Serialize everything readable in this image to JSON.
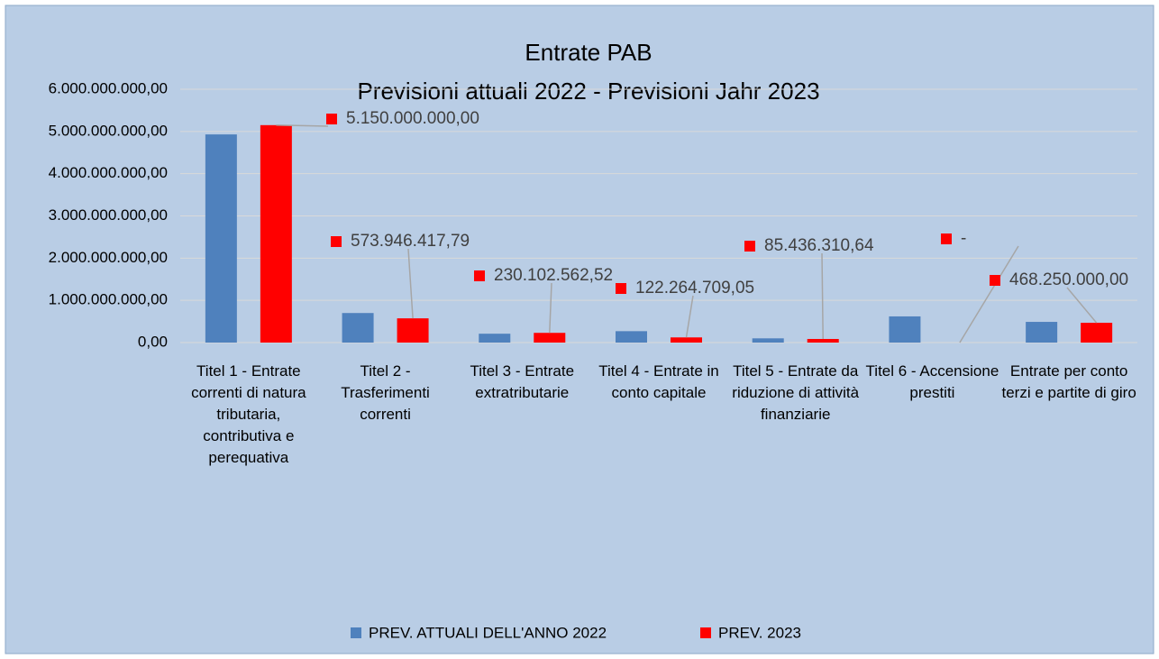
{
  "chart_data": {
    "type": "bar",
    "title": "Entrate PAB",
    "subtitle": "Previsioni attuali 2022 - Previsioni Jahr 2023",
    "categories": [
      "Titel 1 - Entrate correnti di natura tributaria, contributiva e perequativa",
      "Titel 2 - Trasferimenti correnti",
      "Titel 3 - Entrate extratributarie",
      "Titel 4 - Entrate in conto capitale",
      "Titel 5 - Entrate da riduzione di attività finanziarie",
      "Titel 6 - Accensione prestiti",
      "Entrate per conto terzi e partite di giro"
    ],
    "series": [
      {
        "name": "PREV. ATTUALI DELL'ANNO 2022",
        "color": "#4f81bd",
        "values": [
          4930000000,
          700000000,
          210000000,
          270000000,
          100000000,
          620000000,
          490000000
        ]
      },
      {
        "name": "PREV. 2023",
        "color": "#ff0000",
        "values": [
          5150000000,
          573946417.79,
          230102562.52,
          122264709.05,
          85436310.64,
          0,
          468250000
        ],
        "value_labels": [
          "5.150.000.000,00",
          "573.946.417,79",
          "230.102.562,52",
          "122.264.709,05",
          "85.436.310,64",
          "-",
          "468.250.000,00"
        ]
      }
    ],
    "ylim": [
      0,
      6000000000
    ],
    "yticks": [
      {
        "value": 0,
        "label": "0,00"
      },
      {
        "value": 1000000000,
        "label": "1.000.000.000,00"
      },
      {
        "value": 2000000000,
        "label": "2.000.000.000,00"
      },
      {
        "value": 3000000000,
        "label": "3.000.000.000,00"
      },
      {
        "value": 4000000000,
        "label": "4.000.000.000,00"
      },
      {
        "value": 5000000000,
        "label": "5.000.000.000,00"
      },
      {
        "value": 6000000000,
        "label": "6.000.000.000,00"
      }
    ],
    "grid": true,
    "legend": "bottom"
  }
}
